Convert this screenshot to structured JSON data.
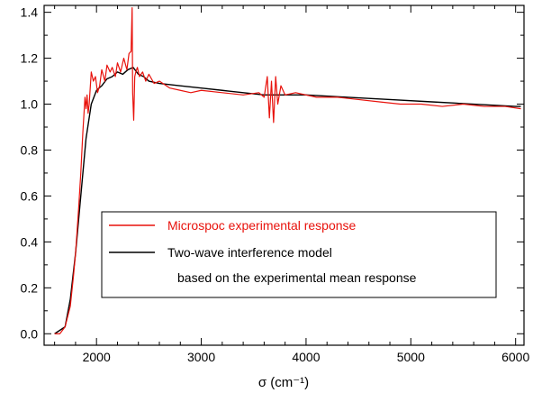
{
  "chart_data": {
    "type": "line",
    "title": "",
    "xlabel": "σ (cm⁻¹)",
    "ylabel": "",
    "xlim": [
      1500,
      6080
    ],
    "ylim": [
      -0.05,
      1.43
    ],
    "x_ticks": [
      2000,
      3000,
      4000,
      5000,
      6000
    ],
    "y_ticks": [
      0.0,
      0.2,
      0.4,
      0.6,
      0.8,
      1.0,
      1.2,
      1.4
    ],
    "y_tick_labels": [
      "0.0",
      "0.2",
      "0.4",
      "0.6",
      "0.8",
      "1.0",
      "1.2",
      "1.4"
    ],
    "grid": false,
    "legend_position": "center-right",
    "colors": {
      "experimental": "#e8120c",
      "model": "#000000"
    },
    "series": [
      {
        "name": "Microspoc experimental response",
        "color": "#e8120c",
        "x": [
          1600,
          1650,
          1700,
          1750,
          1780,
          1800,
          1830,
          1850,
          1870,
          1890,
          1900,
          1910,
          1920,
          1930,
          1950,
          1970,
          1990,
          2010,
          2030,
          2050,
          2080,
          2100,
          2130,
          2150,
          2180,
          2200,
          2230,
          2260,
          2290,
          2310,
          2330,
          2340,
          2345,
          2355,
          2365,
          2375,
          2390,
          2410,
          2440,
          2470,
          2500,
          2550,
          2600,
          2700,
          2800,
          2900,
          3000,
          3200,
          3400,
          3550,
          3600,
          3630,
          3650,
          3670,
          3690,
          3710,
          3730,
          3760,
          3800,
          3900,
          4100,
          4300,
          4500,
          4700,
          4900,
          5100,
          5300,
          5500,
          5700,
          5900,
          6050
        ],
        "y": [
          0.0,
          0.0,
          0.03,
          0.12,
          0.25,
          0.35,
          0.55,
          0.7,
          0.88,
          1.03,
          0.98,
          1.04,
          0.96,
          1.0,
          1.14,
          1.1,
          1.12,
          1.05,
          1.08,
          1.15,
          1.1,
          1.17,
          1.14,
          1.16,
          1.12,
          1.18,
          1.14,
          1.2,
          1.15,
          1.22,
          1.23,
          1.42,
          1.05,
          0.93,
          1.12,
          1.14,
          1.16,
          1.12,
          1.14,
          1.1,
          1.13,
          1.09,
          1.1,
          1.07,
          1.06,
          1.05,
          1.06,
          1.05,
          1.04,
          1.05,
          1.03,
          1.12,
          0.94,
          1.1,
          0.92,
          1.12,
          1.0,
          1.08,
          1.04,
          1.05,
          1.03,
          1.03,
          1.02,
          1.01,
          1.0,
          1.0,
          0.99,
          1.0,
          0.99,
          0.99,
          0.98
        ]
      },
      {
        "name": "Two-wave interference model",
        "color": "#000000",
        "x": [
          1600,
          1700,
          1750,
          1800,
          1850,
          1900,
          1950,
          2000,
          2050,
          2100,
          2150,
          2200,
          2250,
          2300,
          2350,
          2400,
          2450,
          2500,
          2600,
          2800,
          3000,
          3200,
          3400,
          3600,
          3800,
          4000,
          4400,
          4800,
          5200,
          5600,
          6000,
          6050
        ],
        "y": [
          0.0,
          0.03,
          0.15,
          0.35,
          0.6,
          0.85,
          1.0,
          1.06,
          1.08,
          1.11,
          1.12,
          1.14,
          1.13,
          1.15,
          1.16,
          1.13,
          1.12,
          1.1,
          1.09,
          1.08,
          1.07,
          1.06,
          1.05,
          1.04,
          1.04,
          1.04,
          1.03,
          1.02,
          1.01,
          1.0,
          0.99,
          0.99
        ]
      }
    ],
    "legend_note": "based on the experimental mean response"
  }
}
